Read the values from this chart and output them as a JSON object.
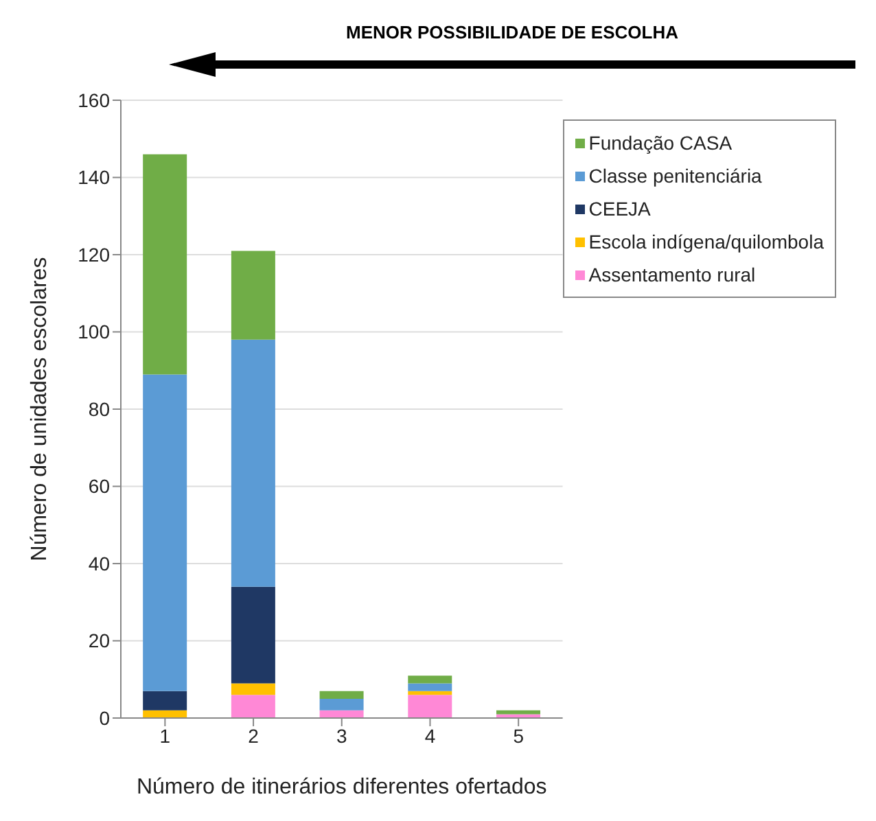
{
  "chart_data": {
    "type": "bar",
    "title": "MENOR POSSIBILIDADE DE ESCOLHA",
    "xlabel": "Número de itinerários diferentes ofertados",
    "ylabel": "Número de unidades escolares",
    "categories": [
      "1",
      "2",
      "3",
      "4",
      "5"
    ],
    "stacked": true,
    "series": [
      {
        "name": "Assentamento rural",
        "color": "#ff88d6",
        "values": [
          0,
          6,
          2,
          6,
          1
        ]
      },
      {
        "name": "Escola indígena/quilombola",
        "color": "#ffc000",
        "values": [
          2,
          3,
          0,
          1,
          0
        ]
      },
      {
        "name": "CEEJA",
        "color": "#1f3864",
        "values": [
          5,
          25,
          0,
          0,
          0
        ]
      },
      {
        "name": "Classe penitenciária",
        "color": "#5b9bd5",
        "values": [
          82,
          64,
          3,
          2,
          0
        ]
      },
      {
        "name": "Fundação CASA",
        "color": "#70ad47",
        "values": [
          57,
          23,
          2,
          2,
          1
        ]
      }
    ],
    "ylim": [
      0,
      160
    ],
    "yticks": [
      0,
      20,
      40,
      60,
      80,
      100,
      120,
      140,
      160
    ],
    "grid": "y",
    "legend": "top right"
  }
}
